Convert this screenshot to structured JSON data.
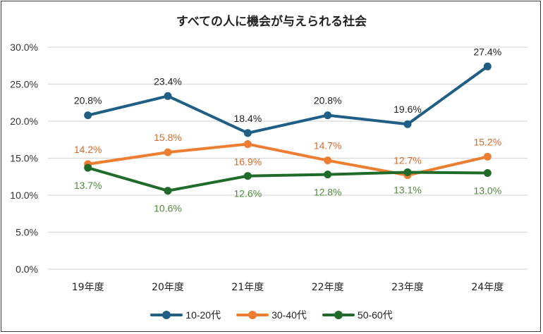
{
  "chart_data": {
    "type": "line",
    "title": "すべての人に機会が与えられる社会",
    "xlabel": "",
    "ylabel": "",
    "categories": [
      "19年度",
      "20年度",
      "21年度",
      "22年度",
      "23年度",
      "24年度"
    ],
    "ylim": [
      0,
      30
    ],
    "yticks": [
      "0.0%",
      "5.0%",
      "10.0%",
      "15.0%",
      "20.0%",
      "25.0%",
      "30.0%"
    ],
    "ytick_values": [
      0,
      5,
      10,
      15,
      20,
      25,
      30
    ],
    "grid": true,
    "legend_position": "bottom",
    "series": [
      {
        "name": "10-20代",
        "color": "#1f5f85",
        "label_color": "#222222",
        "label_pos": "above",
        "values": [
          20.8,
          23.4,
          18.4,
          20.8,
          19.6,
          27.4
        ],
        "labels": [
          "20.8%",
          "23.4%",
          "18.4%",
          "20.8%",
          "19.6%",
          "27.4%"
        ]
      },
      {
        "name": "30-40代",
        "color": "#ed7d31",
        "label_color": "#d8692a",
        "label_pos": [
          "above",
          "above",
          "below",
          "above",
          "above",
          "above"
        ],
        "values": [
          14.2,
          15.8,
          16.9,
          14.7,
          12.7,
          15.2
        ],
        "labels": [
          "14.2%",
          "15.8%",
          "16.9%",
          "14.7%",
          "12.7%",
          "15.2%"
        ]
      },
      {
        "name": "50-60代",
        "color": "#1e6b2a",
        "label_color": "#4e8a3a",
        "label_pos": "below",
        "values": [
          13.7,
          10.6,
          12.6,
          12.8,
          13.1,
          13.0
        ],
        "labels": [
          "13.7%",
          "10.6%",
          "12.6%",
          "12.8%",
          "13.1%",
          "13.0%"
        ]
      }
    ]
  }
}
